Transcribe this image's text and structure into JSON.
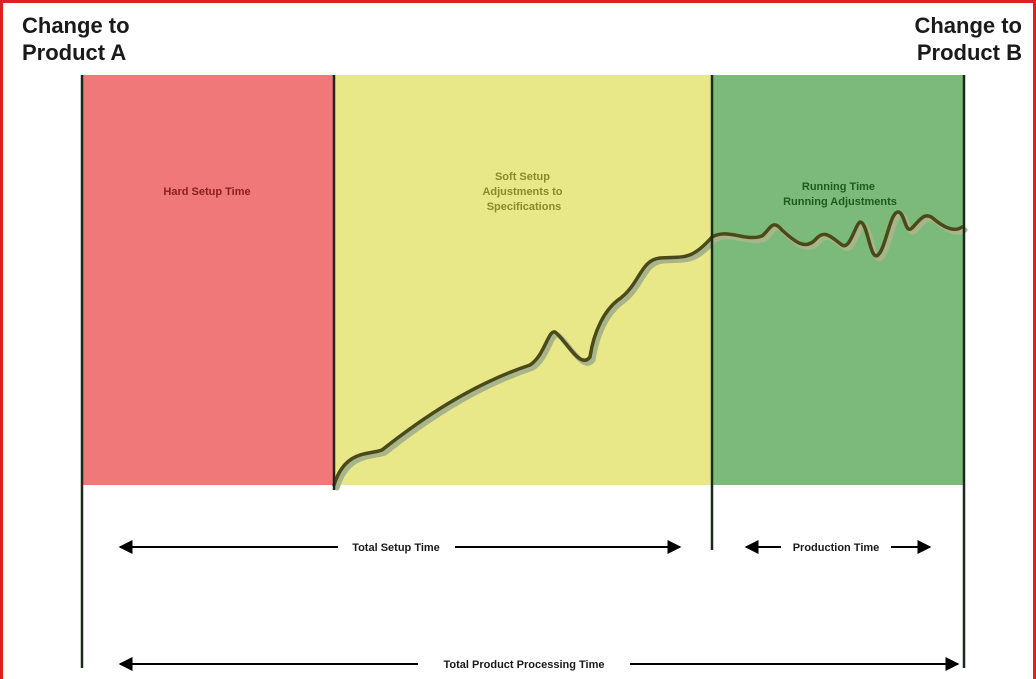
{
  "labels": {
    "change_a": [
      "Change to",
      "Product A"
    ],
    "change_b": [
      "Change to",
      "Product B"
    ]
  },
  "phases": {
    "hard": {
      "lines": [
        "Hard Setup Time"
      ],
      "fill": "#f07878",
      "text_color": "#8a1e1e"
    },
    "soft": {
      "lines": [
        "Soft Setup",
        "Adjustments to",
        "Specifications"
      ],
      "fill": "#e8e888",
      "text_color": "#8a8a2a"
    },
    "run": {
      "lines": [
        "Running Time",
        "Running Adjustments"
      ],
      "fill": "#7cba7c",
      "text_color": "#1e5a1e"
    }
  },
  "spans": {
    "total_setup": "Total Setup Time",
    "production": "Production Time",
    "total_processing": "Total Product Processing Time"
  },
  "colors": {
    "frame": "#e02020",
    "divider": "#1a2a1a",
    "curve": "#4a4a18",
    "curve_shadow": "#a8b48a",
    "arrow": "#000000"
  }
}
